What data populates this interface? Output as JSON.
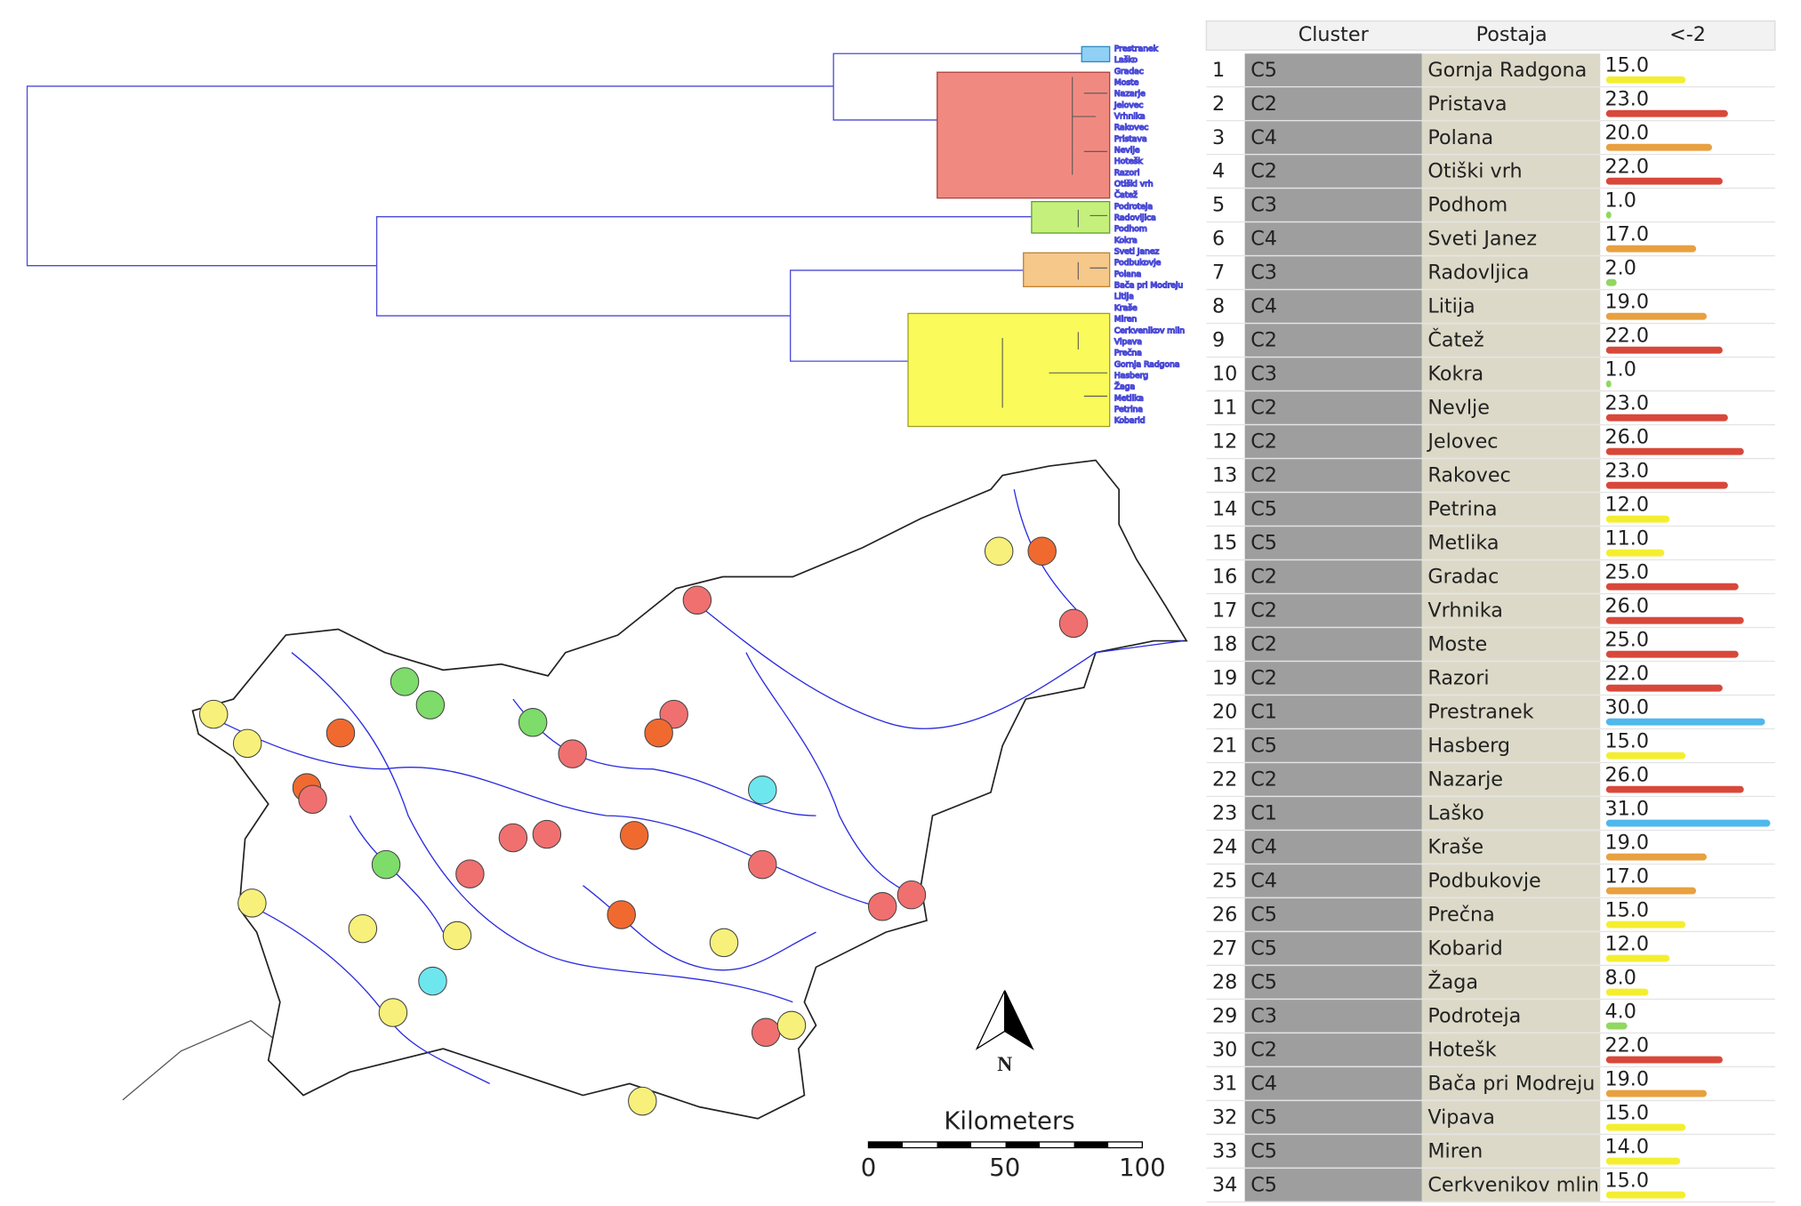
{
  "dendrogram": {
    "leaves": [
      "Prestranek",
      "Laško",
      "Gradac",
      "Moste",
      "Nazarje",
      "Jelovec",
      "Vrhnika",
      "Rakovec",
      "Pristava",
      "Nevlje",
      "Hotešk",
      "Razori",
      "Otiški vrh",
      "Čatež",
      "Podroteja",
      "Radovljica",
      "Podhom",
      "Kokra",
      "Sveti Janez",
      "Podbukovje",
      "Polana",
      "Bača pri Modreju",
      "Litija",
      "Kraše",
      "Miren",
      "Cerkvenikov mlin",
      "Vipava",
      "Prečna",
      "Gornja Radgona",
      "Hasberg",
      "Žaga",
      "Metlika",
      "Petrina",
      "Kobarid"
    ]
  },
  "map": {
    "scale_title": "Kilometers",
    "scale_labels": [
      "0",
      "50",
      "100"
    ],
    "north": "N"
  },
  "table": {
    "columns": [
      "Cluster",
      "Postaja",
      "<-2"
    ],
    "cluster_colors": {
      "C1": "#4fb8ec",
      "C2": "#d8483a",
      "C3": "#90d860",
      "C4": "#e8a040",
      "C5": "#f4ee30"
    },
    "rows": [
      {
        "n": "1",
        "cluster": "C5",
        "postaja": "Gornja Radgona",
        "value": 15,
        "value_label": "15.0"
      },
      {
        "n": "2",
        "cluster": "C2",
        "postaja": "Pristava",
        "value": 23,
        "value_label": "23.0"
      },
      {
        "n": "3",
        "cluster": "C4",
        "postaja": "Polana",
        "value": 20,
        "value_label": "20.0"
      },
      {
        "n": "4",
        "cluster": "C2",
        "postaja": "Otiški vrh",
        "value": 22,
        "value_label": "22.0"
      },
      {
        "n": "5",
        "cluster": "C3",
        "postaja": "Podhom",
        "value": 1,
        "value_label": "1.0"
      },
      {
        "n": "6",
        "cluster": "C4",
        "postaja": "Sveti Janez",
        "value": 17,
        "value_label": "17.0"
      },
      {
        "n": "7",
        "cluster": "C3",
        "postaja": "Radovljica",
        "value": 2,
        "value_label": "2.0"
      },
      {
        "n": "8",
        "cluster": "C4",
        "postaja": "Litija",
        "value": 19,
        "value_label": "19.0"
      },
      {
        "n": "9",
        "cluster": "C2",
        "postaja": "Čatež",
        "value": 22,
        "value_label": "22.0"
      },
      {
        "n": "10",
        "cluster": "C3",
        "postaja": "Kokra",
        "value": 1,
        "value_label": "1.0"
      },
      {
        "n": "11",
        "cluster": "C2",
        "postaja": "Nevlje",
        "value": 23,
        "value_label": "23.0"
      },
      {
        "n": "12",
        "cluster": "C2",
        "postaja": "Jelovec",
        "value": 26,
        "value_label": "26.0"
      },
      {
        "n": "13",
        "cluster": "C2",
        "postaja": "Rakovec",
        "value": 23,
        "value_label": "23.0"
      },
      {
        "n": "14",
        "cluster": "C5",
        "postaja": "Petrina",
        "value": 12,
        "value_label": "12.0"
      },
      {
        "n": "15",
        "cluster": "C5",
        "postaja": "Metlika",
        "value": 11,
        "value_label": "11.0"
      },
      {
        "n": "16",
        "cluster": "C2",
        "postaja": "Gradac",
        "value": 25,
        "value_label": "25.0"
      },
      {
        "n": "17",
        "cluster": "C2",
        "postaja": "Vrhnika",
        "value": 26,
        "value_label": "26.0"
      },
      {
        "n": "18",
        "cluster": "C2",
        "postaja": "Moste",
        "value": 25,
        "value_label": "25.0"
      },
      {
        "n": "19",
        "cluster": "C2",
        "postaja": "Razori",
        "value": 22,
        "value_label": "22.0"
      },
      {
        "n": "20",
        "cluster": "C1",
        "postaja": "Prestranek",
        "value": 30,
        "value_label": "30.0"
      },
      {
        "n": "21",
        "cluster": "C5",
        "postaja": "Hasberg",
        "value": 15,
        "value_label": "15.0"
      },
      {
        "n": "22",
        "cluster": "C2",
        "postaja": "Nazarje",
        "value": 26,
        "value_label": "26.0"
      },
      {
        "n": "23",
        "cluster": "C1",
        "postaja": "Laško",
        "value": 31,
        "value_label": "31.0"
      },
      {
        "n": "24",
        "cluster": "C4",
        "postaja": "Kraše",
        "value": 19,
        "value_label": "19.0"
      },
      {
        "n": "25",
        "cluster": "C4",
        "postaja": "Podbukovje",
        "value": 17,
        "value_label": "17.0"
      },
      {
        "n": "26",
        "cluster": "C5",
        "postaja": "Prečna",
        "value": 15,
        "value_label": "15.0"
      },
      {
        "n": "27",
        "cluster": "C5",
        "postaja": "Kobarid",
        "value": 12,
        "value_label": "12.0"
      },
      {
        "n": "28",
        "cluster": "C5",
        "postaja": "Žaga",
        "value": 8,
        "value_label": "8.0"
      },
      {
        "n": "29",
        "cluster": "C3",
        "postaja": "Podroteja",
        "value": 4,
        "value_label": "4.0"
      },
      {
        "n": "30",
        "cluster": "C2",
        "postaja": "Hotešk",
        "value": 22,
        "value_label": "22.0"
      },
      {
        "n": "31",
        "cluster": "C4",
        "postaja": "Bača pri Modreju",
        "value": 19,
        "value_label": "19.0"
      },
      {
        "n": "32",
        "cluster": "C5",
        "postaja": "Vipava",
        "value": 15,
        "value_label": "15.0"
      },
      {
        "n": "33",
        "cluster": "C5",
        "postaja": "Miren",
        "value": 14,
        "value_label": "14.0"
      },
      {
        "n": "34",
        "cluster": "C5",
        "postaja": "Cerkvenikov mlin",
        "value": 15,
        "value_label": "15.0"
      }
    ]
  }
}
